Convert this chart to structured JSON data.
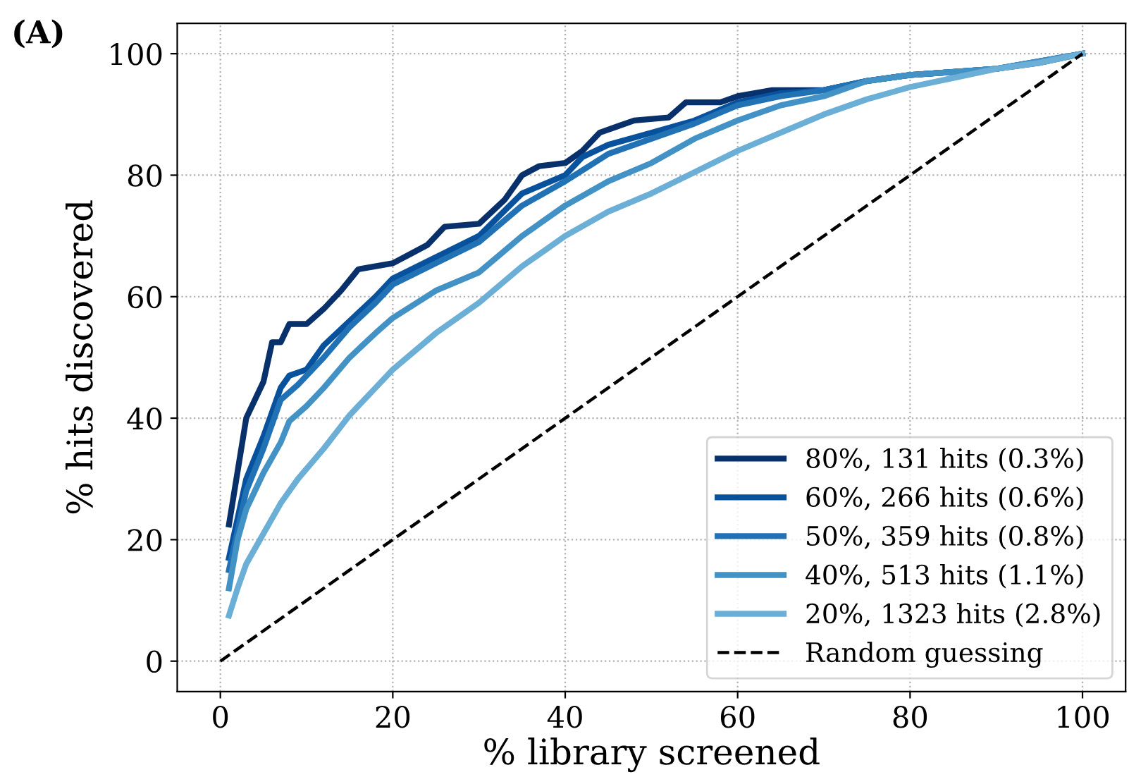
{
  "chart_data": {
    "type": "line",
    "title": "(A)",
    "xlabel": "% library screened",
    "ylabel": "% hits discovered",
    "xlim": [
      -5,
      105
    ],
    "ylim": [
      -5,
      105
    ],
    "xticks": [
      0,
      20,
      40,
      60,
      80,
      100
    ],
    "yticks": [
      0,
      20,
      40,
      60,
      80,
      100
    ],
    "grid": true,
    "legend": "bottom right",
    "marker": "none",
    "series": [
      {
        "name": "80%, 131 hits (0.3%)",
        "color": "#08306b",
        "x": [
          1,
          3,
          5,
          6,
          7,
          8,
          10,
          12,
          14,
          16,
          18,
          20,
          22,
          24,
          26,
          30,
          33,
          35,
          37,
          40,
          42,
          44,
          46,
          48,
          52,
          54,
          58,
          60,
          62,
          64,
          70,
          75,
          80,
          90,
          95,
          100
        ],
        "values": [
          22.5,
          40,
          46,
          52.5,
          52.5,
          55.5,
          55.5,
          58,
          61,
          64.5,
          65,
          65.5,
          67,
          68.5,
          71.5,
          72,
          76,
          80,
          81.5,
          82,
          84,
          87,
          88,
          89,
          89.5,
          92,
          92,
          93,
          93.5,
          94,
          94,
          95.5,
          96.5,
          97.5,
          98.5,
          100
        ]
      },
      {
        "name": "60%, 266 hits (0.6%)",
        "color": "#08519c",
        "x": [
          1,
          3,
          5,
          7,
          8,
          10,
          12,
          15,
          18,
          20,
          25,
          30,
          35,
          40,
          42,
          45,
          50,
          55,
          60,
          65,
          70,
          75,
          80,
          90,
          100
        ],
        "values": [
          17,
          30,
          37,
          45,
          47,
          48,
          52,
          56,
          60,
          63,
          66.5,
          70,
          77,
          80,
          83,
          85,
          87,
          89,
          92,
          93.5,
          94,
          95.5,
          96.5,
          97.5,
          100
        ]
      },
      {
        "name": "50%, 359 hits (0.8%)",
        "color": "#2171b5",
        "x": [
          1,
          3,
          5,
          7,
          9,
          12,
          15,
          18,
          20,
          25,
          30,
          35,
          40,
          45,
          50,
          55,
          60,
          65,
          70,
          75,
          80,
          90,
          100
        ],
        "values": [
          15,
          28,
          35,
          43,
          45.5,
          50,
          55,
          59,
          62,
          65.5,
          69,
          75,
          79,
          83.5,
          86,
          88.5,
          91.5,
          93,
          94,
          95.5,
          96.5,
          97.5,
          100
        ]
      },
      {
        "name": "40%, 513 hits (1.1%)",
        "color": "#4292c6",
        "x": [
          1,
          2,
          3,
          5,
          7,
          8,
          10,
          12,
          15,
          18,
          20,
          25,
          30,
          35,
          40,
          45,
          50,
          55,
          60,
          65,
          70,
          75,
          80,
          90,
          100
        ],
        "values": [
          12,
          20,
          25,
          31,
          36,
          39.5,
          42,
          45,
          50,
          54,
          56.5,
          61,
          64,
          70,
          75,
          79,
          82,
          86,
          89,
          91.5,
          93,
          95.5,
          96.5,
          97.5,
          100
        ]
      },
      {
        "name": "20%, 1323 hits (2.8%)",
        "color": "#6baed6",
        "x": [
          1,
          2,
          3,
          5,
          7,
          9,
          12,
          15,
          18,
          20,
          25,
          30,
          35,
          40,
          45,
          50,
          55,
          60,
          65,
          70,
          75,
          80,
          85,
          90,
          95,
          100
        ],
        "values": [
          7.5,
          12,
          16,
          21,
          26,
          30,
          35,
          40.5,
          45,
          48,
          54,
          59,
          65,
          70,
          74,
          77,
          80.5,
          84,
          87,
          90,
          92.5,
          94.5,
          96,
          97.5,
          98.5,
          100
        ]
      },
      {
        "name": "Random guessing",
        "color": "#000000",
        "line_style": "dashed",
        "x": [
          0,
          100
        ],
        "values": [
          0,
          100
        ]
      }
    ]
  }
}
